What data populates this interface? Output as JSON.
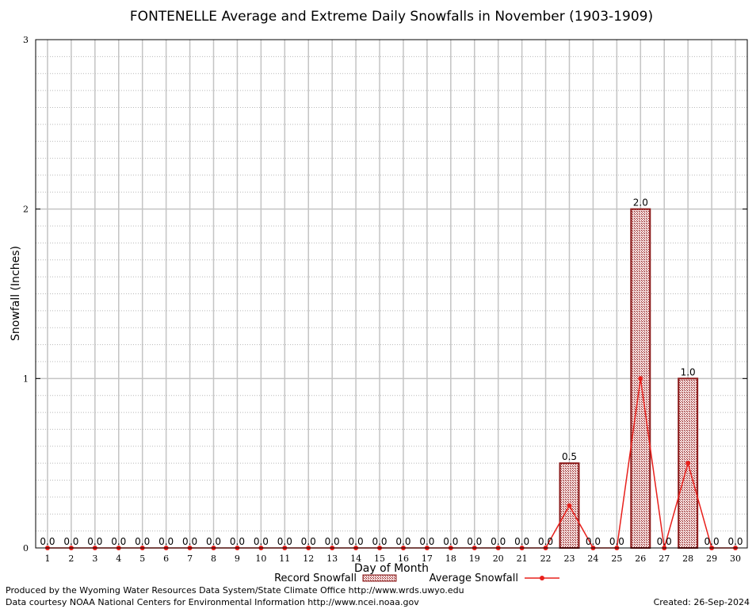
{
  "chart_data": {
    "type": "bar",
    "title": "FONTENELLE Average and Extreme Daily Snowfalls in November (1903-1909)",
    "xlabel": "Day of Month",
    "ylabel": "Snowfall (Inches)",
    "ylim": [
      0,
      3
    ],
    "yticks": [
      "0",
      "1",
      "2",
      "3"
    ],
    "grid": true,
    "categories": [
      "1",
      "2",
      "3",
      "4",
      "5",
      "6",
      "7",
      "8",
      "9",
      "10",
      "11",
      "12",
      "13",
      "14",
      "15",
      "16",
      "17",
      "18",
      "19",
      "20",
      "21",
      "22",
      "23",
      "24",
      "25",
      "26",
      "27",
      "28",
      "29",
      "30"
    ],
    "series": [
      {
        "name": "Record Snowfall",
        "type": "bar",
        "color": "#8b1a1a",
        "values": [
          0,
          0,
          0,
          0,
          0,
          0,
          0,
          0,
          0,
          0,
          0,
          0,
          0,
          0,
          0,
          0,
          0,
          0,
          0,
          0,
          0,
          0,
          0.5,
          0,
          0,
          2.0,
          0,
          1.0,
          0,
          0
        ],
        "labels": [
          "0.0",
          "0.0",
          "0.0",
          "0.0",
          "0.0",
          "0.0",
          "0.0",
          "0.0",
          "0.0",
          "0.0",
          "0.0",
          "0.0",
          "0.0",
          "0.0",
          "0.0",
          "0.0",
          "0.0",
          "0.0",
          "0.0",
          "0.0",
          "0.0",
          "0.0",
          "0.5",
          "0.0",
          "0.0",
          "2.0",
          "0.0",
          "1.0",
          "0.0",
          "0.0"
        ]
      },
      {
        "name": "Average Snowfall",
        "type": "line",
        "color": "#e8201c",
        "values": [
          0,
          0,
          0,
          0,
          0,
          0,
          0,
          0,
          0,
          0,
          0,
          0,
          0,
          0,
          0,
          0,
          0,
          0,
          0,
          0,
          0,
          0,
          0.25,
          0,
          0,
          1.0,
          0,
          0.5,
          0,
          0
        ]
      }
    ],
    "legend_position": "bottom"
  },
  "footer": {
    "line1": "Produced by the Wyoming Water Resources Data System/State Climate Office http://www.wrds.uwyo.edu",
    "line2": "Data courtesy NOAA National Centers for Environmental Information http://www.ncei.noaa.gov",
    "created": "Created:  26-Sep-2024"
  }
}
